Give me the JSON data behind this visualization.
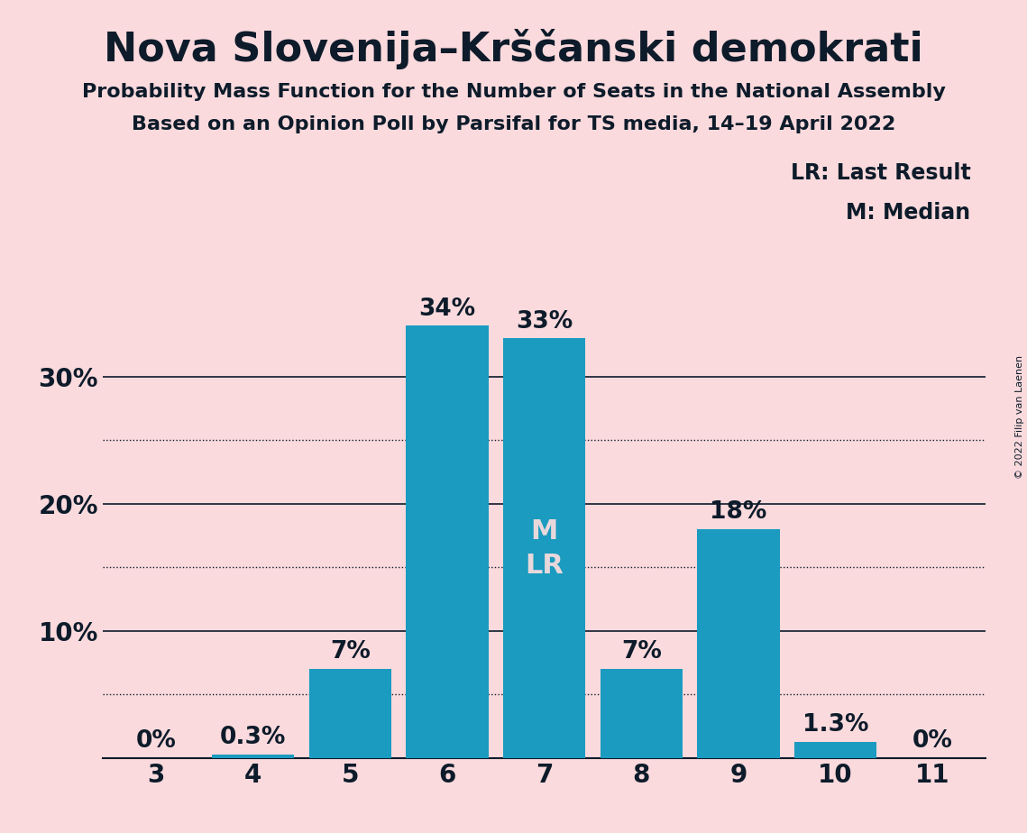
{
  "title": "Nova Slovenija–Krščanski demokrati",
  "subtitle1": "Probability Mass Function for the Number of Seats in the National Assembly",
  "subtitle2": "Based on an Opinion Poll by Parsifal for TS media, 14–19 April 2022",
  "copyright": "© 2022 Filip van Laenen",
  "categories": [
    3,
    4,
    5,
    6,
    7,
    8,
    9,
    10,
    11
  ],
  "values": [
    0.0,
    0.3,
    7.0,
    34.0,
    33.0,
    7.0,
    18.0,
    1.3,
    0.0
  ],
  "bar_color": "#1a9bbf",
  "background_color": "#fadadd",
  "text_color": "#0d1b2a",
  "inside_label_color": "#e8d8db",
  "bar_labels": [
    "0%",
    "0.3%",
    "7%",
    "34%",
    "33%",
    "7%",
    "18%",
    "1.3%",
    "0%"
  ],
  "median_bar_idx": 4,
  "ylim": [
    0,
    38
  ],
  "yticks": [
    10,
    20,
    30
  ],
  "ytick_labels": [
    "10%",
    "20%",
    "30%"
  ],
  "grid_dotted": [
    5,
    15,
    25
  ],
  "grid_solid": [
    10,
    20,
    30
  ],
  "legend_lr": "LR: Last Result",
  "legend_m": "M: Median",
  "title_fontsize": 32,
  "subtitle_fontsize": 16,
  "bar_label_fontsize": 19,
  "axis_tick_fontsize": 20,
  "legend_fontsize": 17,
  "ml_fontsize": 22
}
